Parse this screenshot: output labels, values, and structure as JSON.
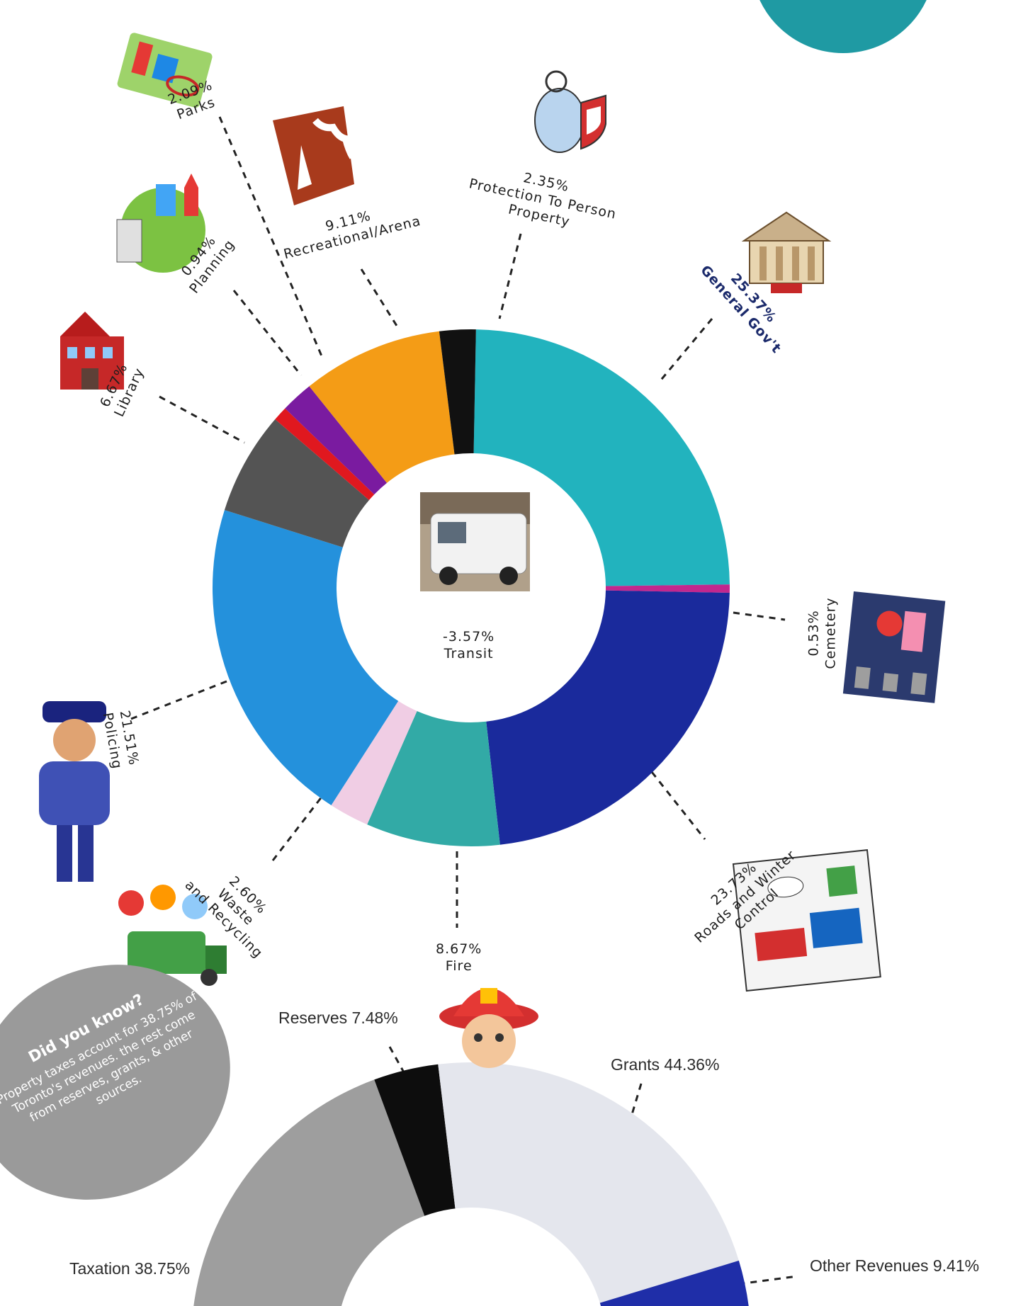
{
  "center_icon": "transit-van-icon",
  "expenses": {
    "transit": {
      "value": "-3.57%",
      "name": "Transit"
    }
  },
  "labels": {
    "parks": {
      "value": "2.09%",
      "name": "Parks",
      "icon": "playground-icon"
    },
    "recreational": {
      "value": "9.11%",
      "name": "Recreational/Arena",
      "icon": "arena-icon"
    },
    "protection": {
      "value": "2.35%",
      "name1": "Protection To Person",
      "name2": "Property",
      "icon": "shield-character-icon"
    },
    "general": {
      "value": "25.37%",
      "name": "General Gov't",
      "icon": "government-building-icon"
    },
    "planning": {
      "value": "0.94%",
      "name": "Planning",
      "icon": "city-globe-icon"
    },
    "library": {
      "value": "6.67%",
      "name": "Library",
      "icon": "library-building-icon"
    },
    "cemetery": {
      "value": "0.53%",
      "name": "Cemetery",
      "icon": "cemetery-scene-icon"
    },
    "policing": {
      "value": "21.51%",
      "name": "Policing",
      "icon": "police-officer-icon"
    },
    "waste": {
      "value": "2.60%",
      "name1": "Waste",
      "name2": "and Recycling",
      "icon": "recycling-truck-icon"
    },
    "fire": {
      "value": "8.67%",
      "name": "Fire",
      "icon": "firefighter-icon"
    },
    "roads": {
      "value": "23.73%",
      "name1": "Roads and Winter",
      "name2": "Control",
      "icon": "snowplow-cartoon-icon"
    }
  },
  "revenue_labels": {
    "reserves": "Reserves 7.48%",
    "grants": "Grants 44.36%",
    "taxation": "Taxation 38.75%",
    "other": "Other Revenues 9.41%"
  },
  "did_you_know": {
    "title": "Did you know?",
    "body": "Property taxes account for 38.75% of Toronto's revenues. the rest come from reserves, grants, & other sources."
  },
  "chart_data": [
    {
      "type": "pie",
      "slices": [
        {
          "label": "General Gov't",
          "value": 25.37,
          "color": "#22b3be"
        },
        {
          "label": "Cemetery",
          "value": 0.53,
          "color": "#c2278e"
        },
        {
          "label": "Roads and Winter Control",
          "value": 23.73,
          "color": "#1a2a9c"
        },
        {
          "label": "Fire",
          "value": 8.67,
          "color": "#32aaa6"
        },
        {
          "label": "Waste and Recycling",
          "value": 2.6,
          "color": "#f0cde4"
        },
        {
          "label": "Policing",
          "value": 21.51,
          "color": "#2491dc"
        },
        {
          "label": "Library",
          "value": 6.67,
          "color": "#545454"
        },
        {
          "label": "Planning",
          "value": 0.94,
          "color": "#e0181f"
        },
        {
          "label": "Parks",
          "value": 2.09,
          "color": "#7a1ba0"
        },
        {
          "label": "Recreational/Arena",
          "value": 9.11,
          "color": "#f49c16"
        },
        {
          "label": "Protection To Person Property",
          "value": 2.35,
          "color": "#111111"
        },
        {
          "label": "Transit",
          "value": -3.57,
          "color": "#ffffff"
        }
      ]
    },
    {
      "type": "pie",
      "slices": [
        {
          "label": "Taxation",
          "value": 38.75,
          "color": "#9e9e9e"
        },
        {
          "label": "Reserves",
          "value": 7.48,
          "color": "#0d0d0d"
        },
        {
          "label": "Grants",
          "value": 44.36,
          "color": "#e4e6ed"
        },
        {
          "label": "Other Revenues",
          "value": 9.41,
          "color": "#1f2ea8"
        }
      ]
    }
  ]
}
